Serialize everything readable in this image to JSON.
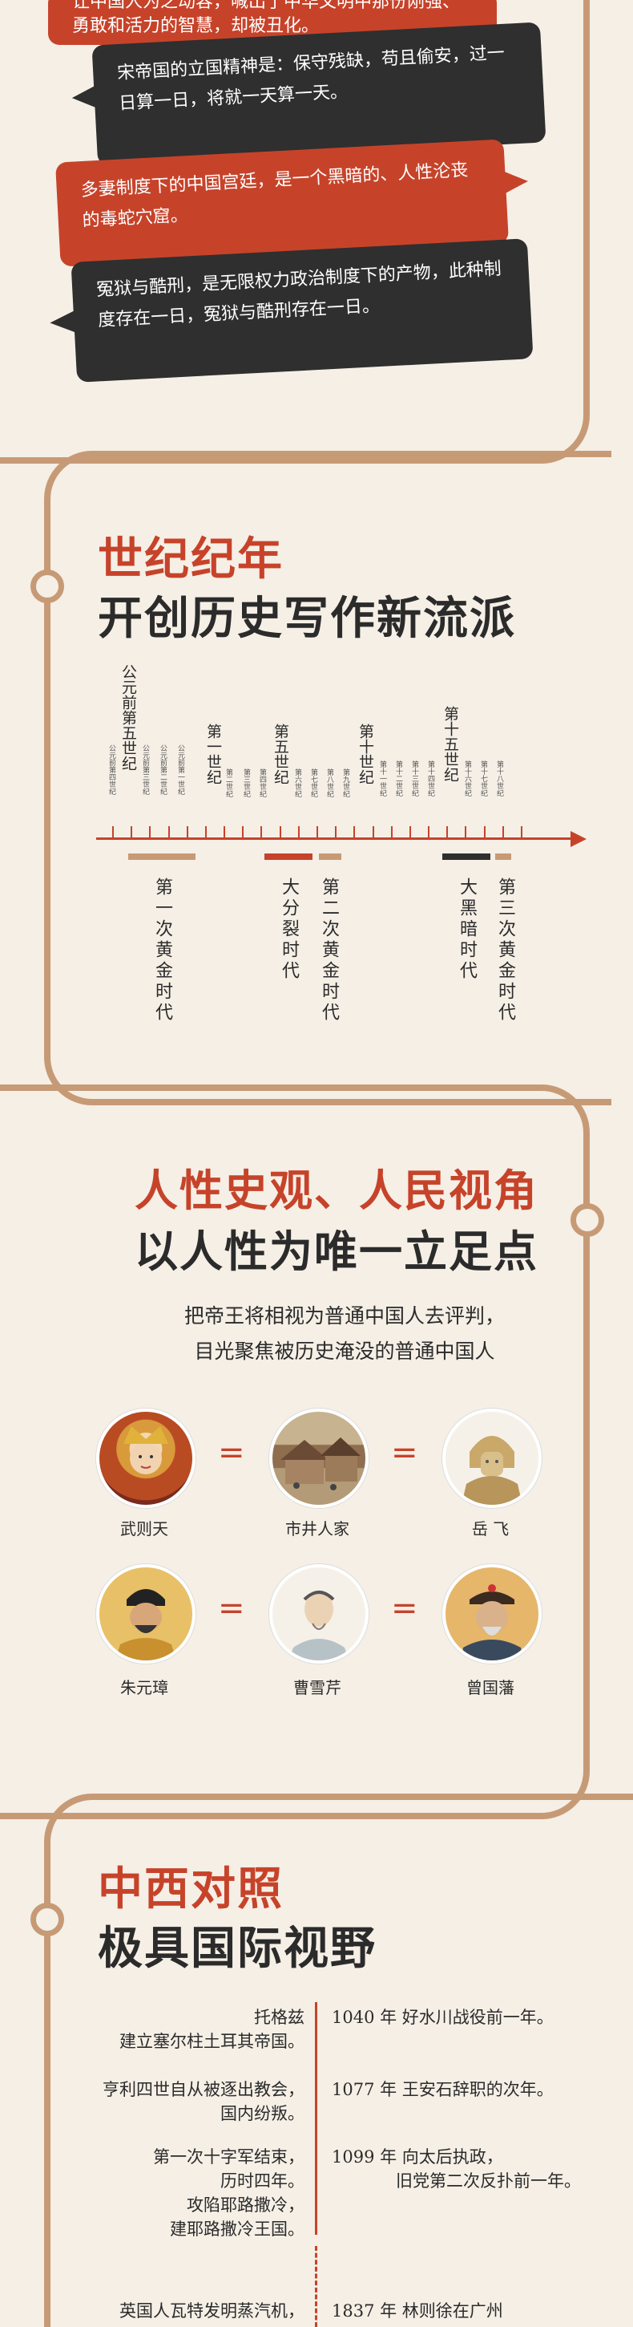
{
  "bubbles": [
    {
      "text": "让中国人为之动容，喊出了中华文明中那份刚强、勇敢和活力的智慧，却被丑化。",
      "color": "red"
    },
    {
      "text": "宋帝国的立国精神是：保守残缺，苟且偷安，过一日算一日，将就一天算一天。",
      "color": "dark"
    },
    {
      "text": "多妻制度下的中国宫廷，是一个黑暗的、人性沦丧的毒蛇穴窟。",
      "color": "red"
    },
    {
      "text": "冤狱与酷刑，是无限权力政治制度下的产物，此种制度存在一日，冤狱与酷刑存在一日。",
      "color": "dark"
    }
  ],
  "section1": {
    "title_red": "世纪纪年",
    "title_dark": "开创历史写作新流派"
  },
  "timeline": {
    "major_labels": [
      "公元前第五世纪",
      "第一世纪",
      "第五世纪",
      "第十世纪",
      "第十五世纪"
    ],
    "minor_labels": [
      "公元前第四世纪",
      "公元前第三世纪",
      "公元前第二世纪",
      "公元前第一世纪",
      "第二世纪",
      "第三世纪",
      "第四世纪",
      "第六世纪",
      "第七世纪",
      "第八世纪",
      "第九世纪",
      "第十一世纪",
      "第十二世纪",
      "第十三世纪",
      "第十四世纪",
      "第十六世纪",
      "第十七世纪",
      "第十八世纪"
    ],
    "eras": [
      {
        "label": "第一次黄金时代",
        "color": "#c79a76"
      },
      {
        "label": "大分裂时代",
        "color": "#c6432a"
      },
      {
        "label": "第二次黄金时代",
        "color": "#c79a76"
      },
      {
        "label": "大黑暗时代",
        "color": "#2f2f2f"
      },
      {
        "label": "第三次黄金时代",
        "color": "#c79a76"
      }
    ]
  },
  "section2": {
    "title_red": "人性史观、人民视角",
    "title_dark": "以人性为唯一立足点",
    "desc_line1": "把帝王将相视为普通中国人去评判，",
    "desc_line2": "目光聚焦被历史淹没的普通中国人",
    "eq": "=",
    "people_row1": [
      "武则天",
      "市井人家",
      "岳 飞"
    ],
    "people_row2": [
      "朱元璋",
      "曹雪芹",
      "曾国藩"
    ]
  },
  "section3": {
    "title_red": "中西对照",
    "title_dark": "极具国际视野",
    "rows": [
      {
        "left": [
          "托格兹",
          "建立塞尔柱土耳其帝国。"
        ],
        "right": [
          "1040 年 好水川战役前一年。"
        ]
      },
      {
        "left": [
          "亨利四世自从被逐出教会，",
          "国内纷叛。"
        ],
        "right": [
          "1077 年 王安石辞职的次年。"
        ]
      },
      {
        "left": [
          "第一次十字军结束，",
          "历时四年。",
          "攻陷耶路撒冷，",
          "建耶路撒冷王国。"
        ],
        "right": [
          "1099 年 向太后执政，",
          "旧党第二次反扑前一年。"
        ]
      },
      {
        "left": [
          "英国人瓦特发明蒸汽机，"
        ],
        "right": [
          "1837 年 林则徐在广州"
        ]
      }
    ]
  }
}
